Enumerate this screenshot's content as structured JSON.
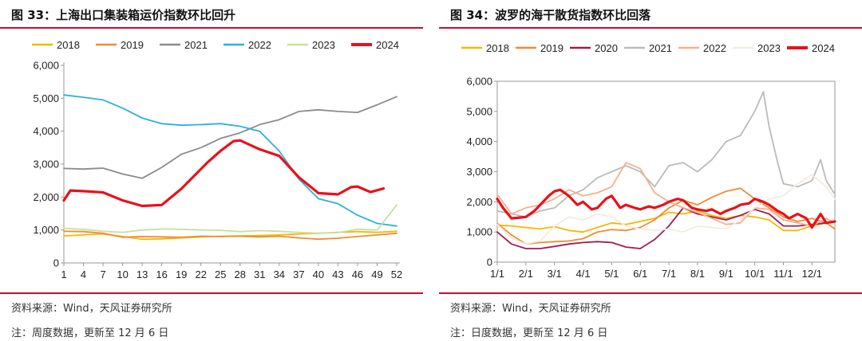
{
  "left": {
    "title": "图 33：上海出口集装箱运价指数环比回升",
    "source": "资料来源：Wind，天风证券研究所",
    "note": "注：周度数据，更新至 12 月 6 日"
  },
  "right": {
    "title": "图 34：波罗的海干散货指数环比回落",
    "source": "资料来源：Wind，天风证券研究所",
    "note": "注：日度数据，更新至 12 月 6 日"
  },
  "chart_data": [
    {
      "type": "line",
      "title": "",
      "xlabel": "",
      "ylabel": "",
      "x_ticks": [
        1,
        4,
        7,
        10,
        13,
        16,
        19,
        22,
        25,
        28,
        31,
        34,
        37,
        40,
        43,
        46,
        49,
        52
      ],
      "y_ticks": [
        0,
        1000,
        2000,
        3000,
        4000,
        5000,
        6000
      ],
      "y_tick_labels": [
        "0",
        "1,000",
        "2,000",
        "3,000",
        "4,000",
        "5,000",
        "6,000"
      ],
      "xlim": [
        1,
        52
      ],
      "ylim": [
        0,
        6000
      ],
      "legend_position": "top",
      "series": [
        {
          "name": "2018",
          "color": "#f5b800",
          "x": [
            1,
            4,
            7,
            10,
            13,
            16,
            19,
            22,
            25,
            28,
            31,
            34,
            37,
            40,
            43,
            46,
            49,
            52
          ],
          "values": [
            820,
            850,
            880,
            800,
            720,
            730,
            760,
            790,
            810,
            820,
            830,
            850,
            880,
            900,
            930,
            950,
            930,
            960
          ]
        },
        {
          "name": "2019",
          "color": "#f08c32",
          "x": [
            1,
            4,
            7,
            10,
            13,
            16,
            19,
            22,
            25,
            28,
            31,
            34,
            37,
            40,
            43,
            46,
            49,
            52
          ],
          "values": [
            960,
            950,
            900,
            780,
            800,
            790,
            780,
            810,
            800,
            810,
            790,
            810,
            760,
            720,
            750,
            800,
            850,
            900
          ]
        },
        {
          "name": "2021",
          "color": "#8c8c8c",
          "x": [
            1,
            4,
            7,
            10,
            13,
            16,
            19,
            22,
            25,
            28,
            31,
            34,
            37,
            40,
            43,
            46,
            49,
            52
          ],
          "values": [
            2870,
            2850,
            2880,
            2700,
            2570,
            2900,
            3300,
            3500,
            3780,
            3950,
            4200,
            4350,
            4600,
            4650,
            4600,
            4570,
            4800,
            5050
          ]
        },
        {
          "name": "2022",
          "color": "#2bb0e0",
          "x": [
            1,
            4,
            7,
            10,
            13,
            16,
            19,
            22,
            25,
            28,
            31,
            34,
            37,
            40,
            43,
            46,
            49,
            52
          ],
          "values": [
            5100,
            5030,
            4950,
            4700,
            4400,
            4230,
            4180,
            4200,
            4230,
            4150,
            4000,
            3400,
            2550,
            1950,
            1800,
            1450,
            1200,
            1120
          ]
        },
        {
          "name": "2023",
          "color": "#c8e0a0",
          "x": [
            1,
            4,
            7,
            10,
            13,
            16,
            19,
            22,
            25,
            28,
            31,
            34,
            37,
            40,
            43,
            46,
            49,
            52
          ],
          "values": [
            1050,
            1020,
            960,
            930,
            1000,
            1030,
            1020,
            1000,
            990,
            950,
            980,
            960,
            930,
            900,
            920,
            1020,
            1000,
            1760
          ]
        },
        {
          "name": "2024",
          "color": "#e8111a",
          "x": [
            1,
            2,
            4,
            7,
            10,
            13,
            16,
            19,
            22,
            23,
            25,
            27,
            28,
            31,
            34,
            37,
            40,
            43,
            45,
            46,
            48,
            50
          ],
          "values": [
            1900,
            2200,
            2180,
            2140,
            1900,
            1730,
            1760,
            2250,
            2850,
            3050,
            3400,
            3700,
            3720,
            3450,
            3250,
            2600,
            2120,
            2080,
            2300,
            2320,
            2150,
            2260
          ]
        }
      ]
    },
    {
      "type": "line",
      "title": "",
      "xlabel": "",
      "ylabel": "",
      "x_tick_labels": [
        "1/1",
        "2/1",
        "3/1",
        "4/1",
        "5/1",
        "6/1",
        "7/1",
        "8/1",
        "9/1",
        "10/1",
        "11/1",
        "12/1"
      ],
      "y_ticks": [
        0,
        1000,
        2000,
        3000,
        4000,
        5000,
        6000
      ],
      "y_tick_labels": [
        "0",
        "1,000",
        "2,000",
        "3,000",
        "4,000",
        "5,000",
        "6,000"
      ],
      "xlim": [
        1,
        12.8
      ],
      "ylim": [
        0,
        6000
      ],
      "legend_position": "top",
      "series": [
        {
          "name": "2018",
          "color": "#f5b800",
          "x": [
            1,
            1.5,
            2,
            2.5,
            3,
            3.5,
            4,
            4.5,
            5,
            5.5,
            6,
            6.5,
            7,
            7.5,
            8,
            8.5,
            9,
            9.5,
            10,
            10.5,
            11,
            11.5,
            12,
            12.5,
            12.8
          ],
          "values": [
            1230,
            1200,
            1150,
            1100,
            1180,
            1050,
            1000,
            1150,
            1300,
            1250,
            1350,
            1450,
            1650,
            1600,
            1700,
            1550,
            1450,
            1550,
            1500,
            1400,
            1050,
            1050,
            1200,
            1300,
            1350
          ]
        },
        {
          "name": "2019",
          "color": "#f08c32",
          "x": [
            1,
            1.5,
            2,
            2.5,
            3,
            3.5,
            4,
            4.5,
            5,
            5.5,
            6,
            6.5,
            7,
            7.5,
            8,
            8.5,
            9,
            9.5,
            10,
            10.5,
            11,
            11.5,
            12,
            12.5,
            12.8
          ],
          "values": [
            1280,
            900,
            600,
            650,
            680,
            700,
            780,
            1000,
            1080,
            1050,
            1150,
            1400,
            1800,
            2050,
            1900,
            2150,
            2350,
            2450,
            2100,
            1800,
            1500,
            1350,
            1450,
            1300,
            1100
          ]
        },
        {
          "name": "2020",
          "color": "#a01c50",
          "x": [
            1,
            1.5,
            2,
            2.5,
            3,
            3.5,
            4,
            4.5,
            5,
            5.5,
            6,
            6.5,
            7,
            7.5,
            8,
            8.5,
            9,
            9.5,
            10,
            10.5,
            11,
            11.5,
            12,
            12.5,
            12.8
          ],
          "values": [
            1000,
            600,
            450,
            450,
            520,
            600,
            650,
            680,
            650,
            500,
            450,
            750,
            1200,
            1800,
            1600,
            1500,
            1400,
            1550,
            1750,
            1600,
            1200,
            1200,
            1250,
            1300,
            1350
          ]
        },
        {
          "name": "2021",
          "color": "#bbbbbb",
          "x": [
            1,
            1.5,
            2,
            2.5,
            3,
            3.5,
            4,
            4.5,
            5,
            5.5,
            6,
            6.5,
            7,
            7.5,
            8,
            8.5,
            9,
            9.5,
            10,
            10.3,
            10.5,
            10.8,
            11,
            11.5,
            12,
            12.3,
            12.5,
            12.8
          ],
          "values": [
            1700,
            1600,
            1500,
            1700,
            1800,
            2200,
            2400,
            2800,
            3000,
            3200,
            3000,
            2500,
            3200,
            3300,
            3000,
            3400,
            4000,
            4200,
            5000,
            5650,
            4500,
            3300,
            2600,
            2500,
            2700,
            3400,
            2700,
            2250
          ]
        },
        {
          "name": "2022",
          "color": "#f4b08c",
          "x": [
            1,
            1.5,
            2,
            2.5,
            3,
            3.5,
            4,
            4.5,
            5,
            5.5,
            6,
            6.5,
            7,
            7.5,
            8,
            8.5,
            9,
            9.5,
            10,
            10.5,
            11,
            11.5,
            12,
            12.5,
            12.8
          ],
          "values": [
            2250,
            1600,
            1800,
            1900,
            2100,
            2400,
            2200,
            2300,
            2500,
            3300,
            3100,
            2300,
            2000,
            1800,
            1650,
            1450,
            1250,
            1300,
            1800,
            1750,
            1400,
            1300,
            1200,
            1450,
            1300
          ]
        },
        {
          "name": "2023",
          "color": "#f3ebe2",
          "x": [
            1,
            1.5,
            2,
            2.5,
            3,
            3.5,
            4,
            4.5,
            5,
            5.5,
            6,
            6.5,
            7,
            7.5,
            8,
            8.5,
            9,
            9.5,
            10,
            10.5,
            11,
            11.5,
            12,
            12.5,
            12.8
          ],
          "values": [
            1250,
            800,
            600,
            700,
            1200,
            1500,
            1400,
            1600,
            1500,
            1200,
            1100,
            1050,
            1100,
            1000,
            1200,
            1150,
            1100,
            1400,
            1800,
            2100,
            2200,
            2600,
            2900,
            2500,
            2100
          ]
        },
        {
          "name": "2024",
          "color": "#e8111a",
          "x": [
            1,
            1.2,
            1.5,
            2,
            2.3,
            2.5,
            2.8,
            3,
            3.2,
            3.5,
            3.8,
            4,
            4.3,
            4.5,
            4.8,
            5,
            5.3,
            5.5,
            5.8,
            6,
            6.3,
            6.5,
            6.8,
            7,
            7.3,
            7.5,
            7.8,
            8,
            8.3,
            8.5,
            8.8,
            9,
            9.3,
            9.5,
            9.8,
            10,
            10.3,
            10.5,
            10.8,
            11,
            11.2,
            11.5,
            11.8,
            12,
            12.3,
            12.5,
            12.8
          ],
          "values": [
            2100,
            1800,
            1450,
            1500,
            1700,
            1900,
            2200,
            2350,
            2400,
            2200,
            1900,
            2000,
            1750,
            1800,
            2100,
            2200,
            1800,
            1900,
            1800,
            1750,
            1850,
            1800,
            1900,
            2000,
            2100,
            2050,
            1800,
            1750,
            1700,
            1750,
            1600,
            1700,
            1800,
            1900,
            1950,
            2100,
            2000,
            1900,
            1700,
            1600,
            1450,
            1600,
            1450,
            1150,
            1600,
            1300,
            1350
          ]
        }
      ]
    }
  ]
}
